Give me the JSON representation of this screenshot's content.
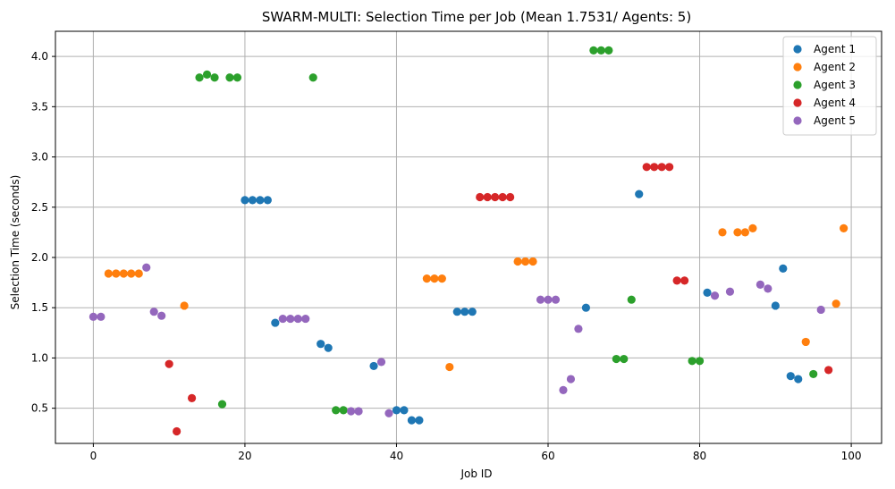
{
  "chart_data": {
    "type": "scatter",
    "title": "SWARM-MULTI: Selection Time per Job (Mean 1.7531/ Agents: 5)",
    "xlabel": "Job ID",
    "ylabel": "Selection Time (seconds)",
    "xlim": [
      -5,
      104
    ],
    "ylim": [
      0.15,
      4.25
    ],
    "xticks": [
      0,
      20,
      40,
      60,
      80,
      100
    ],
    "yticks": [
      0.5,
      1.0,
      1.5,
      2.0,
      2.5,
      3.0,
      3.5,
      4.0
    ],
    "xtick_labels": [
      "0",
      "20",
      "40",
      "60",
      "80",
      "100"
    ],
    "ytick_labels": [
      "0.5",
      "1.0",
      "1.5",
      "2.0",
      "2.5",
      "3.0",
      "3.5",
      "4.0"
    ],
    "grid": true,
    "legend_position": "top-right",
    "series": [
      {
        "name": "Agent 1",
        "color": "#1f77b4",
        "points": [
          [
            20,
            2.57
          ],
          [
            21,
            2.57
          ],
          [
            22,
            2.57
          ],
          [
            23,
            2.57
          ],
          [
            24,
            1.35
          ],
          [
            30,
            1.14
          ],
          [
            31,
            1.1
          ],
          [
            37,
            0.92
          ],
          [
            40,
            0.48
          ],
          [
            41,
            0.48
          ],
          [
            42,
            0.38
          ],
          [
            43,
            0.38
          ],
          [
            48,
            1.46
          ],
          [
            49,
            1.46
          ],
          [
            50,
            1.46
          ],
          [
            65,
            1.5
          ],
          [
            72,
            2.63
          ],
          [
            81,
            1.65
          ],
          [
            90,
            1.52
          ],
          [
            91,
            1.89
          ],
          [
            92,
            0.82
          ],
          [
            93,
            0.79
          ]
        ]
      },
      {
        "name": "Agent 2",
        "color": "#ff7f0e",
        "points": [
          [
            2,
            1.84
          ],
          [
            3,
            1.84
          ],
          [
            4,
            1.84
          ],
          [
            5,
            1.84
          ],
          [
            6,
            1.84
          ],
          [
            12,
            1.52
          ],
          [
            44,
            1.79
          ],
          [
            45,
            1.79
          ],
          [
            46,
            1.79
          ],
          [
            47,
            0.91
          ],
          [
            56,
            1.96
          ],
          [
            57,
            1.96
          ],
          [
            58,
            1.96
          ],
          [
            83,
            2.25
          ],
          [
            85,
            2.25
          ],
          [
            86,
            2.25
          ],
          [
            87,
            2.29
          ],
          [
            94,
            1.16
          ],
          [
            98,
            1.54
          ],
          [
            99,
            2.29
          ]
        ]
      },
      {
        "name": "Agent 3",
        "color": "#2ca02c",
        "points": [
          [
            14,
            3.79
          ],
          [
            15,
            3.82
          ],
          [
            16,
            3.79
          ],
          [
            17,
            0.54
          ],
          [
            18,
            3.79
          ],
          [
            19,
            3.79
          ],
          [
            29,
            3.79
          ],
          [
            32,
            0.48
          ],
          [
            33,
            0.48
          ],
          [
            66,
            4.06
          ],
          [
            67,
            4.06
          ],
          [
            68,
            4.06
          ],
          [
            69,
            0.99
          ],
          [
            70,
            0.99
          ],
          [
            71,
            1.58
          ],
          [
            79,
            0.97
          ],
          [
            80,
            0.97
          ],
          [
            95,
            0.84
          ]
        ]
      },
      {
        "name": "Agent 4",
        "color": "#d62728",
        "points": [
          [
            10,
            0.94
          ],
          [
            11,
            0.27
          ],
          [
            13,
            0.6
          ],
          [
            51,
            2.6
          ],
          [
            52,
            2.6
          ],
          [
            53,
            2.6
          ],
          [
            54,
            2.6
          ],
          [
            55,
            2.6
          ],
          [
            73,
            2.9
          ],
          [
            74,
            2.9
          ],
          [
            75,
            2.9
          ],
          [
            76,
            2.9
          ],
          [
            77,
            1.77
          ],
          [
            78,
            1.77
          ],
          [
            97,
            0.88
          ]
        ]
      },
      {
        "name": "Agent 5",
        "color": "#9467bd",
        "points": [
          [
            0,
            1.41
          ],
          [
            1,
            1.41
          ],
          [
            7,
            1.9
          ],
          [
            8,
            1.46
          ],
          [
            9,
            1.42
          ],
          [
            25,
            1.39
          ],
          [
            26,
            1.39
          ],
          [
            27,
            1.39
          ],
          [
            28,
            1.39
          ],
          [
            34,
            0.47
          ],
          [
            35,
            0.47
          ],
          [
            38,
            0.96
          ],
          [
            39,
            0.45
          ],
          [
            59,
            1.58
          ],
          [
            60,
            1.58
          ],
          [
            61,
            1.58
          ],
          [
            62,
            0.68
          ],
          [
            63,
            0.79
          ],
          [
            64,
            1.29
          ],
          [
            82,
            1.62
          ],
          [
            84,
            1.66
          ],
          [
            88,
            1.73
          ],
          [
            89,
            1.69
          ],
          [
            96,
            1.48
          ]
        ]
      }
    ]
  }
}
